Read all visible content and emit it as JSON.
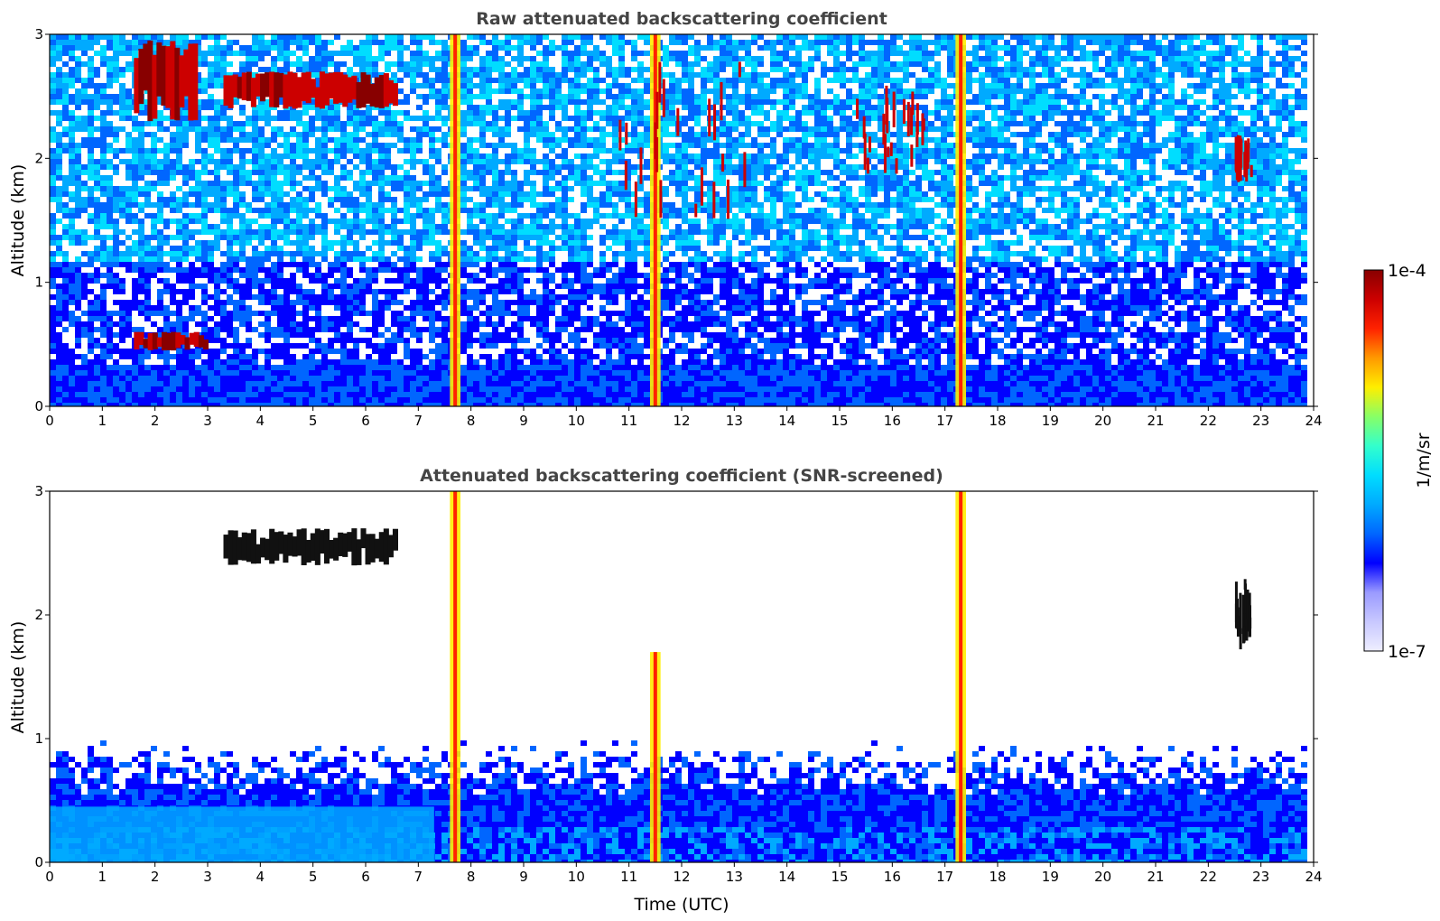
{
  "colors": {
    "colormap": [
      "#eeeeff",
      "#c8c8ff",
      "#9a9aff",
      "#0000ff",
      "#0066ff",
      "#00aaff",
      "#00ddff",
      "#33ffcc",
      "#88ff66",
      "#ffee00",
      "#ff9900",
      "#ff2200",
      "#cc0000",
      "#880000"
    ],
    "background": "#ffffff"
  },
  "colorbar": {
    "top_label": "1e-4",
    "bottom_label": "1e-7",
    "unit_label": "1/m/sr",
    "scale": "log"
  },
  "chart_data": [
    {
      "type": "heatmap",
      "title": "Raw attenuated backscattering coefficient",
      "xlabel": "",
      "ylabel": "Altitude (km)",
      "xlim": [
        0,
        24
      ],
      "ylim": [
        0,
        3
      ],
      "xticks": [
        "0",
        "1",
        "2",
        "3",
        "4",
        "5",
        "6",
        "7",
        "8",
        "9",
        "10",
        "11",
        "12",
        "13",
        "14",
        "15",
        "16",
        "17",
        "18",
        "19",
        "20",
        "21",
        "22",
        "23",
        "24"
      ],
      "yticks": [
        "0",
        "1",
        "2",
        "3"
      ],
      "grid": false,
      "features": [
        {
          "kind": "cloud_layer",
          "x": [
            3.3,
            6.6
          ],
          "y": [
            2.4,
            2.7
          ],
          "level": "high"
        },
        {
          "kind": "cloud_layer",
          "x": [
            1.6,
            2.8
          ],
          "y": [
            2.3,
            2.95
          ],
          "level": "high"
        },
        {
          "kind": "aerosol_layer",
          "x": [
            1.6,
            3.0
          ],
          "y": [
            0.45,
            0.6
          ],
          "level": "high"
        },
        {
          "kind": "rain_column",
          "x": [
            7.6,
            7.8
          ],
          "y": [
            0,
            3
          ],
          "level": "medium"
        },
        {
          "kind": "rain_column",
          "x": [
            11.4,
            11.6
          ],
          "y": [
            0,
            3
          ],
          "level": "medium"
        },
        {
          "kind": "rain_column",
          "x": [
            17.2,
            17.4
          ],
          "y": [
            0,
            3
          ],
          "level": "medium"
        },
        {
          "kind": "cloud_patches",
          "x": [
            10.8,
            13.2
          ],
          "y": [
            1.5,
            2.8
          ],
          "level": "high"
        },
        {
          "kind": "cloud_patches",
          "x": [
            15.3,
            16.6
          ],
          "y": [
            1.8,
            2.6
          ],
          "level": "high"
        },
        {
          "kind": "cloud_patches",
          "x": [
            22.5,
            22.8
          ],
          "y": [
            1.8,
            2.2
          ],
          "level": "high"
        }
      ]
    },
    {
      "type": "heatmap",
      "title": "Attenuated backscattering coefficient (SNR-screened)",
      "xlabel": "Time (UTC)",
      "ylabel": "Altitude (km)",
      "xlim": [
        0,
        24
      ],
      "ylim": [
        0,
        3
      ],
      "xticks": [
        "0",
        "1",
        "2",
        "3",
        "4",
        "5",
        "6",
        "7",
        "8",
        "9",
        "10",
        "11",
        "12",
        "13",
        "14",
        "15",
        "16",
        "17",
        "18",
        "19",
        "20",
        "21",
        "22",
        "23",
        "24"
      ],
      "yticks": [
        "0",
        "1",
        "2",
        "3"
      ],
      "grid": false,
      "features": [
        {
          "kind": "boundary_layer",
          "x": [
            0,
            24
          ],
          "y": [
            0,
            1.0
          ],
          "level": "low"
        },
        {
          "kind": "cloud_layer",
          "x": [
            3.3,
            6.6
          ],
          "y": [
            2.4,
            2.7
          ],
          "level": "high"
        },
        {
          "kind": "rain_column",
          "x": [
            7.6,
            7.8
          ],
          "y": [
            0,
            3
          ],
          "level": "medium"
        },
        {
          "kind": "rain_column",
          "x": [
            11.4,
            11.6
          ],
          "y": [
            0,
            1.7
          ],
          "level": "medium"
        },
        {
          "kind": "rain_column",
          "x": [
            17.2,
            17.4
          ],
          "y": [
            0,
            3
          ],
          "level": "medium"
        },
        {
          "kind": "cloud_patches",
          "x": [
            22.5,
            22.8
          ],
          "y": [
            1.7,
            2.3
          ],
          "level": "high"
        }
      ]
    }
  ]
}
